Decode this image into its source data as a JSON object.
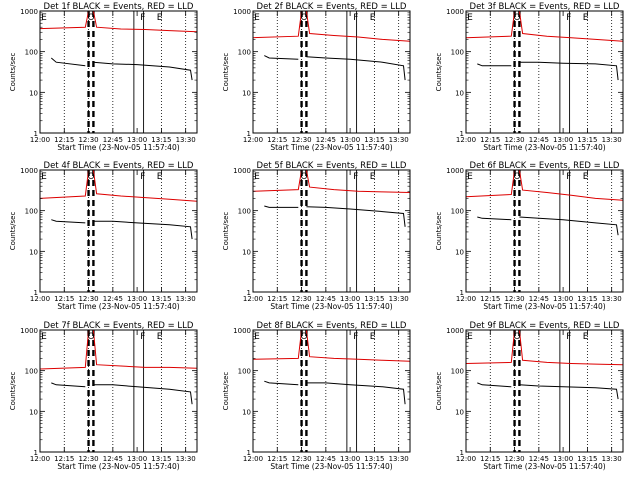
{
  "colors": {
    "events": "#000000",
    "lld": "#dd0000",
    "axes": "#000000",
    "background": "#ffffff"
  },
  "chart_data": [
    {
      "type": "line",
      "title": "Det 1f BLACK = Events, RED = LLD",
      "xlabel": "Start Time (23-Nov-05 11:57:40)",
      "ylabel": "Counts/sec",
      "yscale": "log",
      "ylim": [
        1,
        1000
      ],
      "xlim": [
        "12:00",
        "13:37"
      ],
      "x_ticks": [
        "12:00",
        "12:15",
        "12:30",
        "12:45",
        "13:00",
        "13:15",
        "13:30"
      ],
      "y_ticks": [
        "1",
        "10",
        "100",
        "1000"
      ],
      "annotations": [
        "E",
        "O",
        "F",
        "E"
      ],
      "vertical_markers": {
        "dotted": [
          "12:15",
          "12:30",
          "12:45",
          "13:15",
          "13:30"
        ],
        "dashed": [
          "12:30",
          "12:33"
        ],
        "solid": [
          "12:58",
          "13:04"
        ]
      },
      "series": [
        {
          "x": [
            "12:00",
            "12:28",
            "12:30",
            "12:33",
            "12:35",
            "12:50",
            "13:05",
            "13:20",
            "13:37"
          ],
          "values": [
            370,
            400,
            1000,
            1000,
            400,
            360,
            350,
            330,
            310
          ]
        },
        {
          "x": [
            "12:07",
            "12:10",
            "12:28",
            "12:30",
            "12:33",
            "12:45",
            "13:00",
            "13:20",
            "13:33",
            "13:34"
          ],
          "values": [
            70,
            55,
            45,
            null,
            55,
            50,
            48,
            42,
            35,
            20
          ]
        }
      ]
    },
    {
      "type": "line",
      "title": "Det 2f BLACK = Events, RED = LLD",
      "xlabel": "Start Time (23-Nov-05 11:57:40)",
      "ylabel": "Counts/sec",
      "yscale": "log",
      "ylim": [
        1,
        1000
      ],
      "xlim": [
        "12:00",
        "13:37"
      ],
      "x_ticks": [
        "12:00",
        "12:15",
        "12:30",
        "12:45",
        "13:00",
        "13:15",
        "13:30"
      ],
      "y_ticks": [
        "1",
        "10",
        "100",
        "1000"
      ],
      "annotations": [
        "E",
        "O",
        "F",
        "E"
      ],
      "vertical_markers": {
        "dotted": [
          "12:15",
          "12:30",
          "12:45",
          "13:15",
          "13:30"
        ],
        "dashed": [
          "12:30",
          "12:33"
        ],
        "solid": [
          "12:58",
          "13:04"
        ]
      },
      "series": [
        {
          "x": [
            "12:00",
            "12:28",
            "12:30",
            "12:33",
            "12:35",
            "12:50",
            "13:05",
            "13:20",
            "13:37"
          ],
          "values": [
            220,
            240,
            1000,
            1000,
            280,
            250,
            230,
            200,
            180
          ]
        },
        {
          "x": [
            "12:07",
            "12:10",
            "12:28",
            "12:30",
            "12:33",
            "12:45",
            "13:00",
            "13:20",
            "13:33",
            "13:34"
          ],
          "values": [
            80,
            70,
            65,
            null,
            75,
            70,
            65,
            55,
            45,
            20
          ]
        }
      ]
    },
    {
      "type": "line",
      "title": "Det 3f BLACK = Events, RED = LLD",
      "xlabel": "Start Time (23-Nov-05 11:57:40)",
      "ylabel": "Counts/sec",
      "yscale": "log",
      "ylim": [
        1,
        1000
      ],
      "xlim": [
        "12:00",
        "13:37"
      ],
      "x_ticks": [
        "12:00",
        "12:15",
        "12:30",
        "12:45",
        "13:00",
        "13:15",
        "13:30"
      ],
      "y_ticks": [
        "1",
        "10",
        "100",
        "1000"
      ],
      "annotations": [
        "E",
        "O",
        "F",
        "E"
      ],
      "vertical_markers": {
        "dotted": [
          "12:15",
          "12:30",
          "12:45",
          "13:15",
          "13:30"
        ],
        "dashed": [
          "12:30",
          "12:33"
        ],
        "solid": [
          "12:58",
          "13:04"
        ]
      },
      "series": [
        {
          "x": [
            "12:00",
            "12:28",
            "12:30",
            "12:33",
            "12:35",
            "12:50",
            "13:05",
            "13:20",
            "13:37"
          ],
          "values": [
            220,
            240,
            1000,
            1000,
            280,
            240,
            220,
            200,
            180
          ]
        },
        {
          "x": [
            "12:07",
            "12:10",
            "12:28",
            "12:30",
            "12:33",
            "12:45",
            "13:00",
            "13:20",
            "13:33",
            "13:34"
          ],
          "values": [
            50,
            45,
            45,
            null,
            55,
            55,
            52,
            50,
            45,
            20
          ]
        }
      ]
    },
    {
      "type": "line",
      "title": "Det 4f BLACK = Events, RED = LLD",
      "xlabel": "Start Time (23-Nov-05 11:57:40)",
      "ylabel": "Counts/sec",
      "yscale": "log",
      "ylim": [
        1,
        1000
      ],
      "xlim": [
        "12:00",
        "13:37"
      ],
      "x_ticks": [
        "12:00",
        "12:15",
        "12:30",
        "12:45",
        "13:00",
        "13:15",
        "13:30"
      ],
      "y_ticks": [
        "1",
        "10",
        "100",
        "1000"
      ],
      "annotations": [
        "E",
        "O",
        "F",
        "E"
      ],
      "vertical_markers": {
        "dotted": [
          "12:15",
          "12:30",
          "12:45",
          "13:15",
          "13:30"
        ],
        "dashed": [
          "12:30",
          "12:33"
        ],
        "solid": [
          "12:58",
          "13:04"
        ]
      },
      "series": [
        {
          "x": [
            "12:00",
            "12:28",
            "12:30",
            "12:33",
            "12:35",
            "12:50",
            "13:05",
            "13:20",
            "13:37"
          ],
          "values": [
            200,
            230,
            1000,
            1000,
            260,
            230,
            210,
            190,
            170
          ]
        },
        {
          "x": [
            "12:07",
            "12:10",
            "12:28",
            "12:30",
            "12:33",
            "12:45",
            "13:00",
            "13:20",
            "13:33",
            "13:34"
          ],
          "values": [
            60,
            55,
            50,
            null,
            55,
            55,
            50,
            45,
            40,
            20
          ]
        }
      ]
    },
    {
      "type": "line",
      "title": "Det 5f BLACK = Events, RED = LLD",
      "xlabel": "Start Time (23-Nov-05 11:57:40)",
      "ylabel": "Counts/sec",
      "yscale": "log",
      "ylim": [
        1,
        1000
      ],
      "xlim": [
        "12:00",
        "13:37"
      ],
      "x_ticks": [
        "12:00",
        "12:15",
        "12:30",
        "12:45",
        "13:00",
        "13:15",
        "13:30"
      ],
      "y_ticks": [
        "1",
        "10",
        "100",
        "1000"
      ],
      "annotations": [
        "E",
        "O",
        "F",
        "E"
      ],
      "vertical_markers": {
        "dotted": [
          "12:15",
          "12:30",
          "12:45",
          "13:15",
          "13:30"
        ],
        "dashed": [
          "12:30",
          "12:33"
        ],
        "solid": [
          "12:58",
          "13:04"
        ]
      },
      "series": [
        {
          "x": [
            "12:00",
            "12:28",
            "12:30",
            "12:33",
            "12:35",
            "12:50",
            "13:05",
            "13:20",
            "13:37"
          ],
          "values": [
            300,
            330,
            1000,
            1000,
            380,
            330,
            300,
            290,
            280
          ]
        },
        {
          "x": [
            "12:07",
            "12:10",
            "12:28",
            "12:30",
            "12:33",
            "12:45",
            "13:00",
            "13:20",
            "13:33",
            "13:34"
          ],
          "values": [
            130,
            120,
            120,
            null,
            125,
            120,
            110,
            95,
            85,
            40
          ]
        }
      ]
    },
    {
      "type": "line",
      "title": "Det 6f BLACK = Events, RED = LLD",
      "xlabel": "Start Time (23-Nov-05 11:57:40)",
      "ylabel": "Counts/sec",
      "yscale": "log",
      "ylim": [
        1,
        1000
      ],
      "xlim": [
        "12:00",
        "13:37"
      ],
      "x_ticks": [
        "12:00",
        "12:15",
        "12:30",
        "12:45",
        "13:00",
        "13:15",
        "13:30"
      ],
      "y_ticks": [
        "1",
        "10",
        "100",
        "1000"
      ],
      "annotations": [
        "E",
        "O",
        "F",
        "E"
      ],
      "vertical_markers": {
        "dotted": [
          "12:15",
          "12:30",
          "12:45",
          "13:15",
          "13:30"
        ],
        "dashed": [
          "12:30",
          "12:33"
        ],
        "solid": [
          "12:58",
          "13:04"
        ]
      },
      "series": [
        {
          "x": [
            "12:00",
            "12:28",
            "12:30",
            "12:33",
            "12:35",
            "12:50",
            "13:05",
            "13:20",
            "13:37"
          ],
          "values": [
            220,
            250,
            1000,
            1000,
            320,
            280,
            240,
            200,
            180
          ]
        },
        {
          "x": [
            "12:07",
            "12:10",
            "12:28",
            "12:30",
            "12:33",
            "12:45",
            "13:00",
            "13:20",
            "13:33",
            "13:34"
          ],
          "values": [
            70,
            65,
            60,
            null,
            70,
            65,
            60,
            50,
            45,
            25
          ]
        }
      ]
    },
    {
      "type": "line",
      "title": "Det 7f BLACK = Events, RED = LLD",
      "xlabel": "Start Time (23-Nov-05 11:57:40)",
      "ylabel": "Counts/sec",
      "yscale": "log",
      "ylim": [
        1,
        1000
      ],
      "xlim": [
        "12:00",
        "13:37"
      ],
      "x_ticks": [
        "12:00",
        "12:15",
        "12:30",
        "12:45",
        "13:00",
        "13:15",
        "13:30"
      ],
      "y_ticks": [
        "1",
        "10",
        "100",
        "1000"
      ],
      "annotations": [
        "E",
        "O",
        "F",
        "E"
      ],
      "vertical_markers": {
        "dotted": [
          "12:15",
          "12:30",
          "12:45",
          "13:15",
          "13:30"
        ],
        "dashed": [
          "12:30",
          "12:33"
        ],
        "solid": [
          "12:58",
          "13:04"
        ]
      },
      "series": [
        {
          "x": [
            "12:00",
            "12:28",
            "12:30",
            "12:33",
            "12:35",
            "12:50",
            "13:05",
            "13:20",
            "13:37"
          ],
          "values": [
            110,
            120,
            1000,
            1000,
            140,
            130,
            120,
            120,
            115
          ]
        },
        {
          "x": [
            "12:07",
            "12:10",
            "12:28",
            "12:30",
            "12:33",
            "12:45",
            "13:00",
            "13:20",
            "13:33",
            "13:34"
          ],
          "values": [
            50,
            45,
            40,
            null,
            45,
            45,
            40,
            35,
            30,
            15
          ]
        }
      ]
    },
    {
      "type": "line",
      "title": "Det 8f BLACK = Events, RED = LLD",
      "xlabel": "Start Time (23-Nov-05 11:57:40)",
      "ylabel": "Counts/sec",
      "yscale": "log",
      "ylim": [
        1,
        1000
      ],
      "xlim": [
        "12:00",
        "13:37"
      ],
      "x_ticks": [
        "12:00",
        "12:15",
        "12:30",
        "12:45",
        "13:00",
        "13:15",
        "13:30"
      ],
      "y_ticks": [
        "1",
        "10",
        "100",
        "1000"
      ],
      "annotations": [
        "E",
        "O",
        "F",
        "E"
      ],
      "vertical_markers": {
        "dotted": [
          "12:15",
          "12:30",
          "12:45",
          "13:15",
          "13:30"
        ],
        "dashed": [
          "12:30",
          "12:33"
        ],
        "solid": [
          "12:58",
          "13:04"
        ]
      },
      "series": [
        {
          "x": [
            "12:00",
            "12:28",
            "12:30",
            "12:33",
            "12:35",
            "12:50",
            "13:05",
            "13:20",
            "13:37"
          ],
          "values": [
            190,
            200,
            1000,
            1000,
            220,
            200,
            190,
            180,
            170
          ]
        },
        {
          "x": [
            "12:07",
            "12:10",
            "12:28",
            "12:30",
            "12:33",
            "12:45",
            "13:00",
            "13:20",
            "13:33",
            "13:34"
          ],
          "values": [
            55,
            50,
            45,
            null,
            50,
            50,
            45,
            40,
            35,
            15
          ]
        }
      ]
    },
    {
      "type": "line",
      "title": "Det 9f BLACK = Events, RED = LLD",
      "xlabel": "Start Time (23-Nov-05 11:57:40)",
      "ylabel": "Counts/sec",
      "yscale": "log",
      "ylim": [
        1,
        1000
      ],
      "xlim": [
        "12:00",
        "13:37"
      ],
      "x_ticks": [
        "12:00",
        "12:15",
        "12:30",
        "12:45",
        "13:00",
        "13:15",
        "13:30"
      ],
      "y_ticks": [
        "1",
        "10",
        "100",
        "1000"
      ],
      "annotations": [
        "E",
        "O",
        "F",
        "E"
      ],
      "vertical_markers": {
        "dotted": [
          "12:15",
          "12:30",
          "12:45",
          "13:15",
          "13:30"
        ],
        "dashed": [
          "12:30",
          "12:33"
        ],
        "solid": [
          "12:58",
          "13:04"
        ]
      },
      "series": [
        {
          "x": [
            "12:00",
            "12:28",
            "12:30",
            "12:33",
            "12:35",
            "12:50",
            "13:05",
            "13:20",
            "13:37"
          ],
          "values": [
            150,
            160,
            1000,
            1000,
            180,
            160,
            150,
            145,
            140
          ]
        },
        {
          "x": [
            "12:07",
            "12:10",
            "12:28",
            "12:30",
            "12:33",
            "12:45",
            "13:00",
            "13:20",
            "13:33",
            "13:34"
          ],
          "values": [
            50,
            45,
            40,
            null,
            45,
            42,
            40,
            38,
            35,
            20
          ]
        }
      ]
    }
  ]
}
